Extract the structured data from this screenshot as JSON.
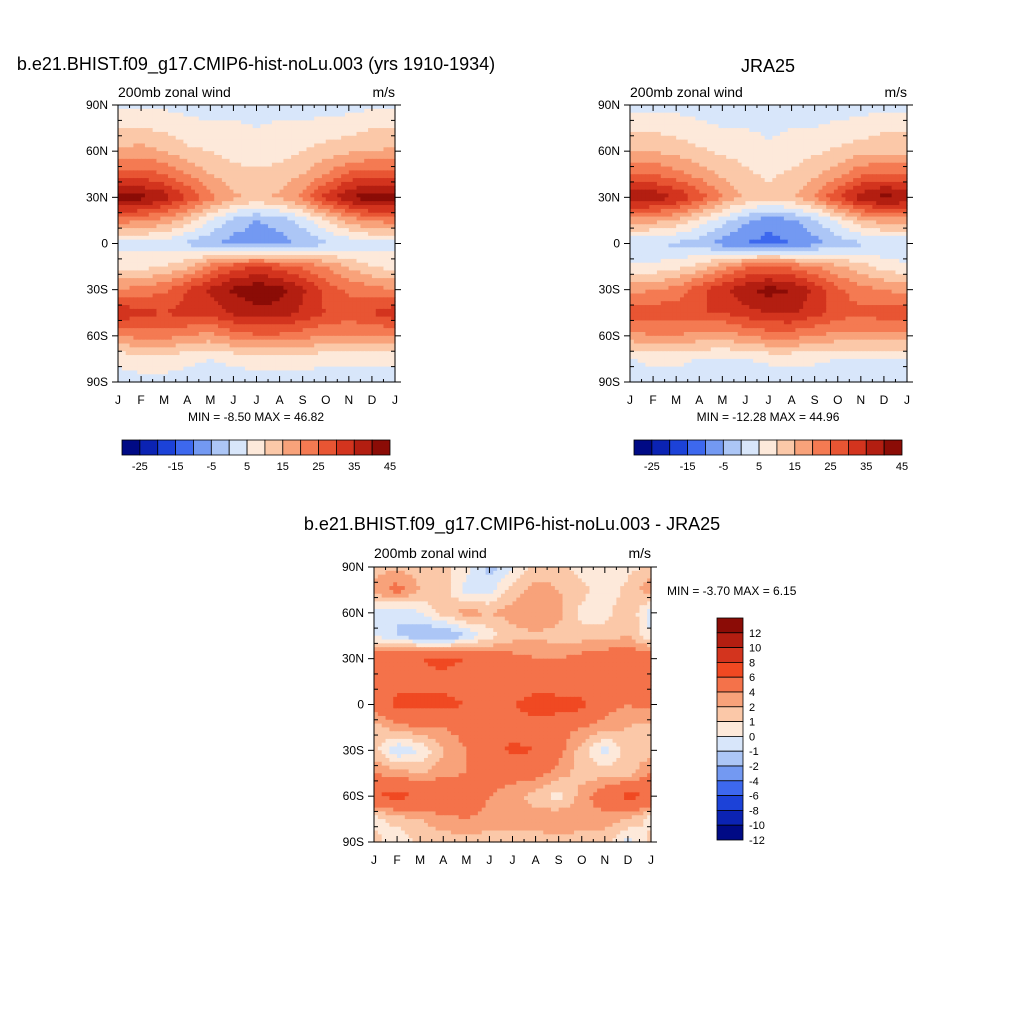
{
  "chart_data": [
    {
      "type": "heatmap",
      "title": "b.e21.BHIST.f09_g17.CMIP6-hist-noLu.003 (yrs 1910-1934)",
      "left_label": "200mb zonal wind",
      "right_label": "m/s",
      "x_ticks": [
        "J",
        "F",
        "M",
        "A",
        "M",
        "J",
        "J",
        "A",
        "S",
        "O",
        "N",
        "D",
        "J"
      ],
      "y_ticks": [
        "90N",
        "60N",
        "30N",
        "0",
        "30S",
        "60S",
        "90S"
      ],
      "ylim": [
        -90,
        90
      ],
      "stats": "MIN =  -8.50 MAX =  46.82",
      "colorbar_labels": [
        "-25",
        "-15",
        "-5",
        "5",
        "15",
        "25",
        "35",
        "45"
      ],
      "colorbar_colors": [
        "#000a85",
        "#0b23b3",
        "#1c42d8",
        "#3d68ee",
        "#7399f2",
        "#acc6f6",
        "#d8e6fa",
        "#fde9da",
        "#fbc8a8",
        "#f8a27a",
        "#f47a52",
        "#e85533",
        "#d3341e",
        "#b31e11",
        "#8b0c06"
      ],
      "latitudes": [
        90,
        75,
        60,
        45,
        30,
        15,
        0,
        -15,
        -30,
        -45,
        -60,
        -75,
        -90
      ],
      "z": [
        [
          4,
          4,
          4,
          3,
          3,
          3,
          2,
          3,
          3,
          3,
          3,
          4,
          4
        ],
        [
          10,
          10,
          9,
          7,
          6,
          6,
          5,
          6,
          6,
          7,
          8,
          10,
          10
        ],
        [
          16,
          17,
          15,
          11,
          10,
          8,
          7,
          8,
          10,
          12,
          14,
          15,
          16
        ],
        [
          28,
          27,
          25,
          20,
          15,
          12,
          11,
          12,
          15,
          20,
          26,
          28,
          28
        ],
        [
          43,
          42,
          38,
          30,
          22,
          16,
          14,
          16,
          22,
          32,
          40,
          44,
          43
        ],
        [
          22,
          21,
          18,
          12,
          5,
          -2,
          -5,
          -3,
          2,
          10,
          17,
          21,
          22
        ],
        [
          3,
          3,
          2,
          -1,
          -4,
          -7,
          -8,
          -7,
          -4,
          -1,
          1,
          3,
          3
        ],
        [
          8,
          8,
          10,
          14,
          22,
          28,
          30,
          28,
          24,
          20,
          14,
          10,
          8
        ],
        [
          20,
          22,
          24,
          30,
          36,
          41,
          44,
          42,
          36,
          28,
          24,
          22,
          20
        ],
        [
          34,
          32,
          30,
          32,
          32,
          36,
          38,
          38,
          34,
          30,
          28,
          30,
          34
        ],
        [
          20,
          22,
          22,
          20,
          18,
          22,
          24,
          24,
          22,
          20,
          20,
          20,
          20
        ],
        [
          6,
          7,
          7,
          6,
          5,
          6,
          7,
          7,
          7,
          6,
          6,
          6,
          6
        ],
        [
          3,
          4,
          4,
          3,
          3,
          3,
          3,
          3,
          3,
          3,
          3,
          3,
          3
        ]
      ]
    },
    {
      "type": "heatmap",
      "title": "JRA25",
      "left_label": "200mb zonal wind",
      "right_label": "m/s",
      "x_ticks": [
        "J",
        "F",
        "M",
        "A",
        "M",
        "J",
        "J",
        "A",
        "S",
        "O",
        "N",
        "D",
        "J"
      ],
      "y_ticks": [
        "90N",
        "60N",
        "30N",
        "0",
        "30S",
        "60S",
        "90S"
      ],
      "ylim": [
        -90,
        90
      ],
      "stats": "MIN = -12.28 MAX =  44.96",
      "colorbar_labels": [
        "-25",
        "-15",
        "-5",
        "5",
        "15",
        "25",
        "35",
        "45"
      ],
      "colorbar_colors": [
        "#000a85",
        "#0b23b3",
        "#1c42d8",
        "#3d68ee",
        "#7399f2",
        "#acc6f6",
        "#d8e6fa",
        "#fde9da",
        "#fbc8a8",
        "#f8a27a",
        "#f47a52",
        "#e85533",
        "#d3341e",
        "#b31e11",
        "#8b0c06"
      ],
      "latitudes": [
        90,
        75,
        60,
        45,
        30,
        15,
        0,
        -15,
        -30,
        -45,
        -60,
        -75,
        -90
      ],
      "z": [
        [
          3,
          3,
          3,
          3,
          2,
          2,
          2,
          2,
          2,
          3,
          3,
          3,
          3
        ],
        [
          9,
          9,
          8,
          6,
          5,
          5,
          4,
          5,
          5,
          6,
          7,
          9,
          9
        ],
        [
          14,
          15,
          13,
          11,
          9,
          8,
          6,
          7,
          9,
          11,
          13,
          14,
          14
        ],
        [
          26,
          25,
          22,
          18,
          14,
          11,
          9,
          11,
          14,
          18,
          24,
          26,
          26
        ],
        [
          40,
          39,
          35,
          28,
          20,
          14,
          12,
          14,
          20,
          30,
          38,
          42,
          40
        ],
        [
          18,
          17,
          14,
          8,
          2,
          -4,
          -8,
          -6,
          -1,
          6,
          14,
          18,
          18
        ],
        [
          0,
          0,
          -1,
          -3,
          -7,
          -10,
          -12,
          -10,
          -7,
          -3,
          -1,
          0,
          0
        ],
        [
          6,
          6,
          8,
          12,
          18,
          24,
          26,
          24,
          20,
          16,
          12,
          8,
          6
        ],
        [
          18,
          20,
          22,
          28,
          34,
          39,
          42,
          40,
          34,
          26,
          22,
          20,
          18
        ],
        [
          30,
          28,
          28,
          30,
          30,
          33,
          35,
          36,
          32,
          28,
          26,
          28,
          30
        ],
        [
          18,
          20,
          20,
          18,
          17,
          20,
          22,
          22,
          20,
          18,
          18,
          18,
          18
        ],
        [
          5,
          6,
          6,
          5,
          4,
          5,
          6,
          6,
          6,
          5,
          5,
          5,
          5
        ],
        [
          2,
          3,
          3,
          2,
          2,
          2,
          2,
          2,
          2,
          2,
          2,
          2,
          2
        ]
      ]
    },
    {
      "type": "heatmap",
      "title": "b.e21.BHIST.f09_g17.CMIP6-hist-noLu.003 - JRA25",
      "left_label": "200mb zonal wind",
      "right_label": "m/s",
      "x_ticks": [
        "J",
        "F",
        "M",
        "A",
        "M",
        "J",
        "J",
        "A",
        "S",
        "O",
        "N",
        "D",
        "J"
      ],
      "y_ticks": [
        "90N",
        "60N",
        "30N",
        "0",
        "30S",
        "60S",
        "90S"
      ],
      "ylim": [
        -90,
        90
      ],
      "stats": "MIN =  -3.70 MAX =   6.15",
      "colorbar_labels": [
        "12",
        "10",
        "8",
        "6",
        "4",
        "2",
        "1",
        "0",
        "-1",
        "-2",
        "-4",
        "-6",
        "-8",
        "-10",
        "-12"
      ],
      "colorbar_colors": [
        "#8b0c06",
        "#b31e11",
        "#d3341e",
        "#f04922",
        "#f4724a",
        "#f8a27a",
        "#fbc8a8",
        "#fde9da",
        "#d8e6fa",
        "#acc6f6",
        "#7399f2",
        "#3d68ee",
        "#1c42d8",
        "#0b23b3",
        "#000a85"
      ],
      "latitudes": [
        90,
        75,
        60,
        45,
        30,
        15,
        0,
        -15,
        -30,
        -45,
        -60,
        -75,
        -90
      ],
      "z": [
        [
          0.5,
          0.8,
          0.5,
          0.3,
          -0.5,
          -2.5,
          -1.0,
          0.3,
          0.5,
          -0.5,
          -1.0,
          -0.5,
          0.5
        ],
        [
          1.5,
          2.5,
          1.0,
          0.5,
          -1.5,
          -1.5,
          0.5,
          1.5,
          1.0,
          0.5,
          -1.0,
          0.5,
          1.5
        ],
        [
          -1.5,
          -2.0,
          -1.0,
          0.5,
          1.5,
          1.0,
          1.5,
          2.0,
          1.5,
          -0.5,
          -0.5,
          1.0,
          -1.5
        ],
        [
          -1.0,
          -2.0,
          -3.0,
          -3.5,
          -2.0,
          -0.5,
          0.5,
          0.8,
          0.5,
          0.5,
          0.5,
          1.0,
          -1.0
        ],
        [
          3.0,
          3.5,
          4.0,
          4.5,
          4.0,
          3.0,
          2.5,
          2.0,
          2.0,
          2.5,
          3.0,
          3.5,
          3.0
        ],
        [
          2.5,
          3.5,
          3.5,
          3.5,
          3.0,
          2.5,
          2.5,
          3.0,
          2.5,
          2.5,
          2.0,
          2.0,
          2.5
        ],
        [
          2.5,
          4.5,
          4.5,
          4.5,
          4.0,
          4.0,
          4.0,
          5.0,
          5.0,
          4.5,
          2.5,
          2.0,
          2.5
        ],
        [
          0.5,
          1.5,
          2.0,
          2.0,
          2.5,
          3.0,
          3.0,
          3.0,
          2.5,
          2.0,
          1.5,
          1.0,
          0.5
        ],
        [
          0.5,
          -2.0,
          -1.0,
          1.0,
          2.0,
          3.0,
          4.5,
          4.0,
          2.5,
          0.5,
          -1.5,
          0.5,
          0.5
        ],
        [
          2.0,
          1.5,
          1.0,
          1.5,
          2.0,
          2.5,
          2.5,
          2.5,
          1.5,
          0.5,
          0.5,
          0.5,
          2.0
        ],
        [
          4.0,
          4.5,
          4.0,
          4.0,
          3.5,
          2.0,
          1.5,
          0.5,
          -0.5,
          1.5,
          3.0,
          4.5,
          4.0
        ],
        [
          -0.5,
          0.5,
          1.0,
          1.5,
          2.0,
          1.5,
          1.5,
          1.5,
          2.0,
          1.5,
          1.5,
          1.0,
          -0.5
        ],
        [
          0.5,
          -1.0,
          0.5,
          0.5,
          0.5,
          0.5,
          0.5,
          0.5,
          0.5,
          0.5,
          0.5,
          -1.5,
          0.5
        ]
      ]
    }
  ]
}
